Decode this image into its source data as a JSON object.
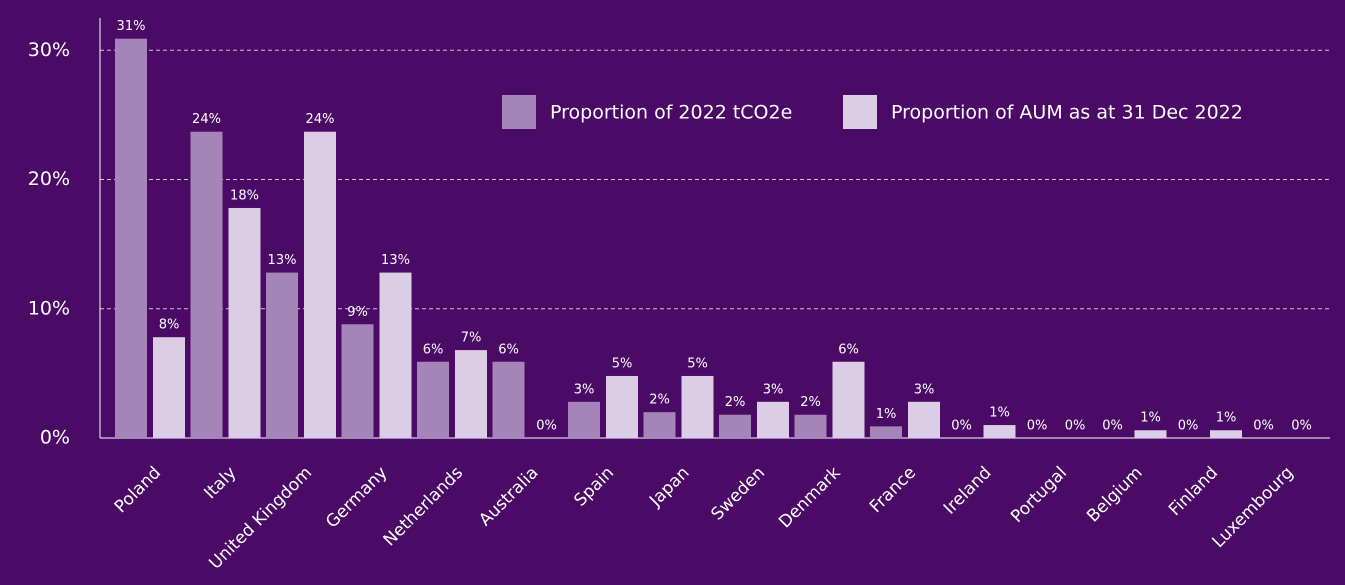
{
  "chart_data": {
    "type": "bar",
    "categories": [
      "Poland",
      "Italy",
      "United Kingdom",
      "Germany",
      "Netherlands",
      "Australia",
      "Spain",
      "Japan",
      "Sweden",
      "Denmark",
      "France",
      "Ireland",
      "Portugal",
      "Belgium",
      "Finland",
      "Luxembourg"
    ],
    "series": [
      {
        "name": "Proportion of 2022 tCO2e",
        "color": "#a585b8",
        "values": [
          30.9,
          23.7,
          12.8,
          8.8,
          5.9,
          5.9,
          2.8,
          2.0,
          1.8,
          1.8,
          0.9,
          0,
          0,
          0,
          0,
          0
        ],
        "value_labels": [
          "31%",
          "24%",
          "13%",
          "9%",
          "6%",
          "6%",
          "3%",
          "2%",
          "2%",
          "2%",
          "1%",
          "0%",
          "0%",
          "0%",
          "0%",
          "0%"
        ]
      },
      {
        "name": "Proportion of AUM as at 31 Dec 2022",
        "color": "#dccde6",
        "values": [
          7.8,
          17.8,
          23.7,
          12.8,
          6.8,
          0,
          4.8,
          4.8,
          2.8,
          5.9,
          2.8,
          1.0,
          0,
          0.6,
          0.6,
          0
        ],
        "value_labels": [
          "8%",
          "18%",
          "24%",
          "13%",
          "7%",
          "0%",
          "5%",
          "5%",
          "3%",
          "6%",
          "3%",
          "1%",
          "0%",
          "1%",
          "1%",
          "0%"
        ]
      }
    ],
    "ylim": [
      0,
      32.5
    ],
    "yticks": [
      {
        "value": 0,
        "label": "0%"
      },
      {
        "value": 10,
        "label": "10%"
      },
      {
        "value": 20,
        "label": "20%"
      },
      {
        "value": 30,
        "label": "30%"
      }
    ],
    "grid": true
  }
}
